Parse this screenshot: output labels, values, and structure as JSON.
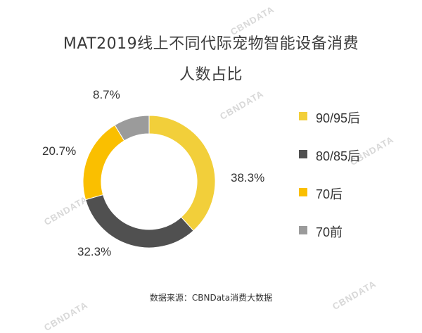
{
  "title_line1": "MAT2019线上不同代际宠物智能设备消费",
  "title_line2": "人数占比",
  "source": "数据来源：CBNData消费大数据",
  "watermark": "CBNDATA",
  "chart_data": {
    "type": "pie",
    "donut": true,
    "start": "12 o'clock, clockwise",
    "categories": [
      "90/95后",
      "80/85后",
      "70后",
      "70前"
    ],
    "values": [
      38.3,
      32.3,
      20.7,
      8.7
    ],
    "labels": [
      "38.3%",
      "32.3%",
      "20.7%",
      "8.7%"
    ],
    "colors": [
      "#f2cf3a",
      "#505050",
      "#fabf00",
      "#9b9b9b"
    ],
    "legend_position": "right"
  }
}
